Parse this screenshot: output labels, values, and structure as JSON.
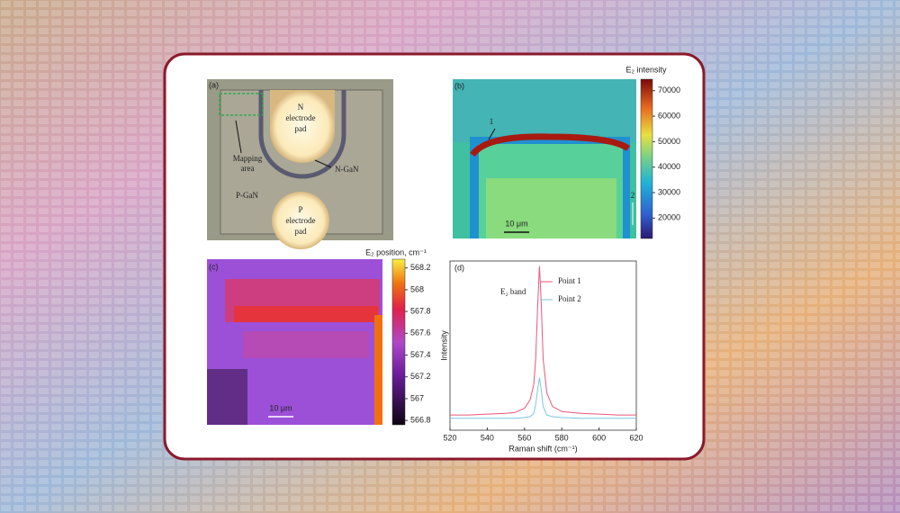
{
  "panel_a": {
    "label": "(a)",
    "n_pad": [
      "N",
      "electrode",
      "pad"
    ],
    "p_pad": [
      "P",
      "electrode",
      "pad"
    ],
    "mapping_area": [
      "Mapping",
      "area"
    ],
    "n_gan": "N-GaN",
    "p_gan": "P-GaN"
  },
  "chart_data": [
    {
      "type": "heatmap",
      "label": "(b)",
      "colorbar_label": "E₂ intensity",
      "ylim": [
        12000,
        74500
      ],
      "yticks": [
        20000,
        30000,
        40000,
        50000,
        60000,
        70000
      ],
      "annotations": [
        "1",
        "2"
      ],
      "scale_bar": "10 μm"
    },
    {
      "type": "heatmap",
      "label": "(c)",
      "colorbar_label": "E₂ position, cm⁻¹",
      "ylim": [
        566.76,
        568.28
      ],
      "yticks": [
        566.8,
        567,
        567.2,
        567.4,
        567.6,
        567.8,
        568,
        568.2
      ],
      "scale_bar": "10 μm"
    },
    {
      "type": "line",
      "label": "(d)",
      "xlabel": "Raman shift (cm⁻¹)",
      "ylabel": "Intensity",
      "annotation": "E₂ band",
      "x": [
        520,
        530,
        540,
        550,
        555,
        560,
        563,
        565,
        566,
        567,
        568,
        569,
        570,
        572,
        575,
        580,
        590,
        600,
        610,
        620
      ],
      "xlim": [
        520,
        620
      ],
      "xticks": [
        520,
        540,
        560,
        580,
        600,
        620
      ],
      "ylim": [
        0,
        100
      ],
      "series": [
        {
          "name": "Point 1",
          "color": "#e8577a",
          "values": [
            9,
            9,
            9.5,
            10,
            10.5,
            13,
            18,
            27,
            42,
            72,
            97,
            75,
            42,
            22,
            14,
            11,
            10,
            9.5,
            9,
            9
          ]
        },
        {
          "name": "Point 2",
          "color": "#7cc6e0",
          "values": [
            7,
            7,
            7,
            7,
            7,
            7.5,
            8,
            10,
            15,
            24,
            31,
            24,
            14,
            9,
            8,
            7.5,
            7,
            7,
            7,
            7
          ]
        }
      ]
    }
  ]
}
